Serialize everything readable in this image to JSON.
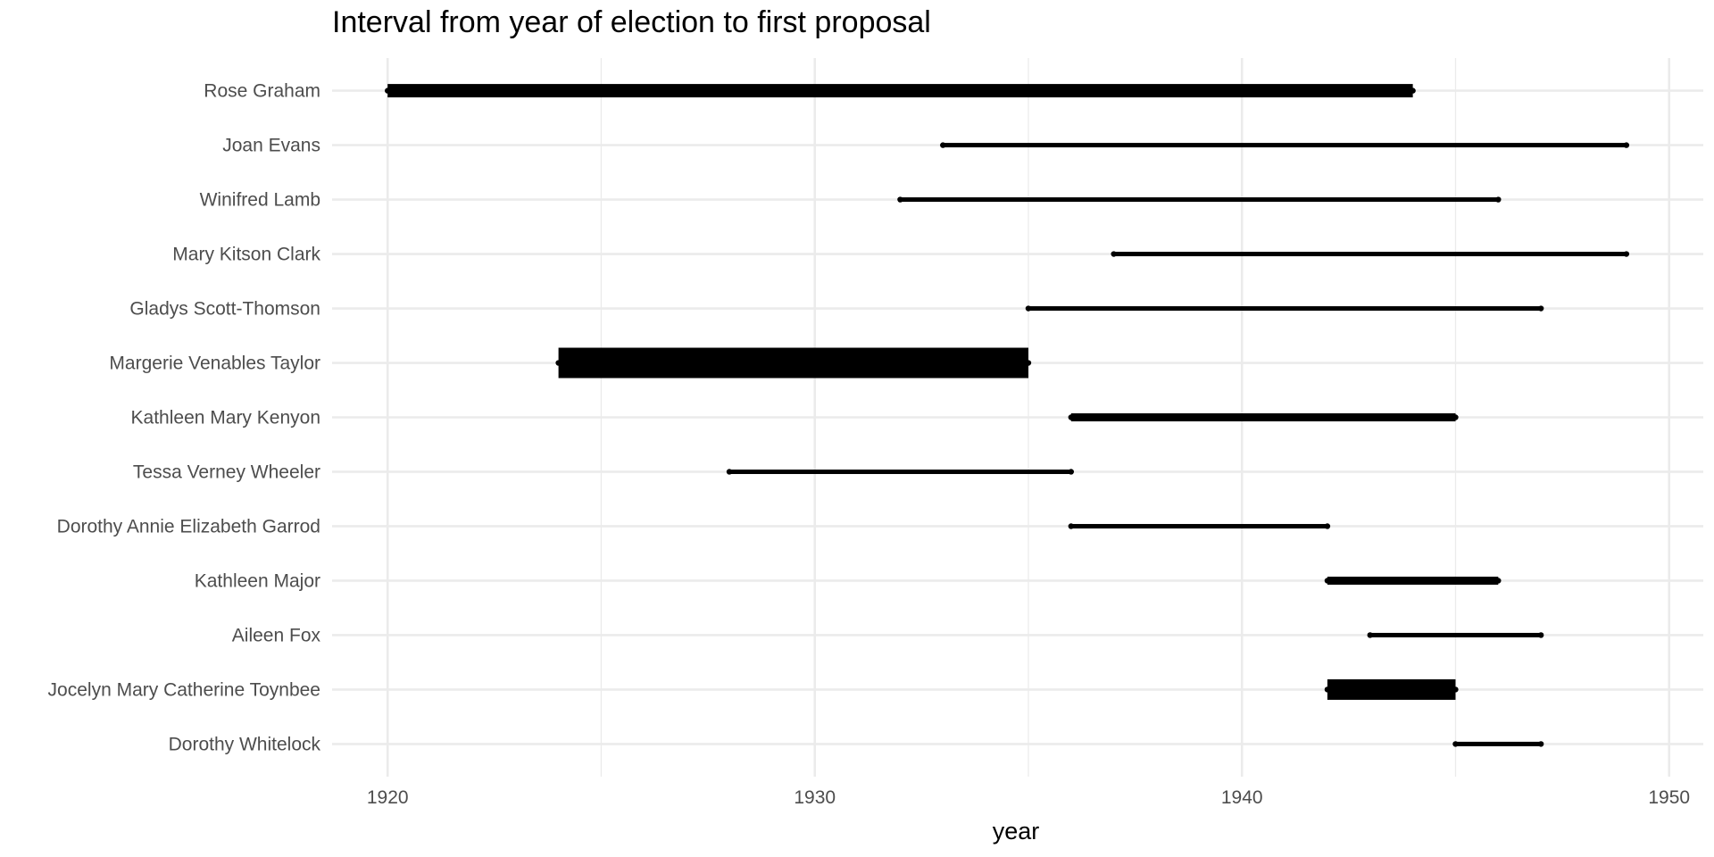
{
  "chart_data": {
    "type": "interval",
    "title": "Interval from year of election to first proposal",
    "xlabel": "year",
    "ylabel": "",
    "xlim": [
      1918.7,
      1950.8
    ],
    "x_ticks": [
      1920,
      1930,
      1940,
      1950
    ],
    "x_tick_labels": [
      "1920",
      "1930",
      "1940",
      "1950"
    ],
    "grid": true,
    "colors": {
      "mark": "#000000",
      "grid": "#ebebeb",
      "background": "#ffffff",
      "tick_text": "#4d4d4d"
    },
    "rows": [
      {
        "name": "Rose Graham",
        "start": 1920,
        "end": 1944,
        "weight": 3
      },
      {
        "name": "Joan Evans",
        "start": 1933,
        "end": 1949,
        "weight": 1
      },
      {
        "name": "Winifred Lamb",
        "start": 1932,
        "end": 1946,
        "weight": 1
      },
      {
        "name": "Mary Kitson Clark",
        "start": 1937,
        "end": 1949,
        "weight": 1
      },
      {
        "name": "Gladys Scott-Thomson",
        "start": 1935,
        "end": 1947,
        "weight": 1
      },
      {
        "name": "Margerie Venables Taylor",
        "start": 1924,
        "end": 1935,
        "weight": 6
      },
      {
        "name": "Kathleen Mary Kenyon",
        "start": 1936,
        "end": 1945,
        "weight": 2
      },
      {
        "name": "Tessa Verney Wheeler",
        "start": 1928,
        "end": 1936,
        "weight": 1
      },
      {
        "name": "Dorothy Annie Elizabeth Garrod",
        "start": 1936,
        "end": 1942,
        "weight": 1
      },
      {
        "name": "Kathleen Major",
        "start": 1942,
        "end": 1946,
        "weight": 2
      },
      {
        "name": "Aileen Fox",
        "start": 1943,
        "end": 1947,
        "weight": 1
      },
      {
        "name": "Jocelyn Mary Catherine Toynbee",
        "start": 1942,
        "end": 1945,
        "weight": 4
      },
      {
        "name": "Dorothy Whitelock",
        "start": 1945,
        "end": 1947,
        "weight": 1
      }
    ]
  }
}
